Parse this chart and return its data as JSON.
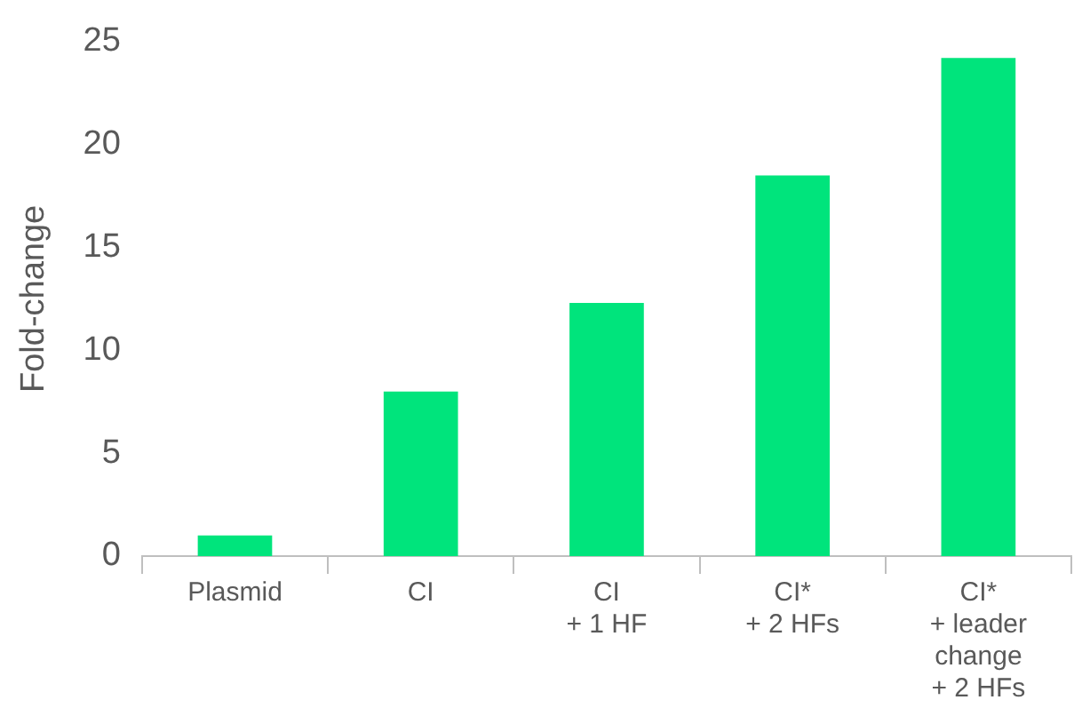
{
  "chart_data": {
    "type": "bar",
    "ylabel": "Fold-change",
    "categories": [
      "Plasmid",
      "CI",
      "CI\n+ 1 HF",
      "CI*\n+ 2 HFs",
      "CI*\n+ leader\nchange\n+ 2 HFs"
    ],
    "values": [
      1,
      8,
      12.3,
      18.5,
      24.2
    ],
    "color": "#00e47c",
    "ylim": [
      0,
      25
    ],
    "yticks": [
      0,
      5,
      10,
      15,
      20,
      25
    ],
    "grid": false,
    "legend": false
  }
}
